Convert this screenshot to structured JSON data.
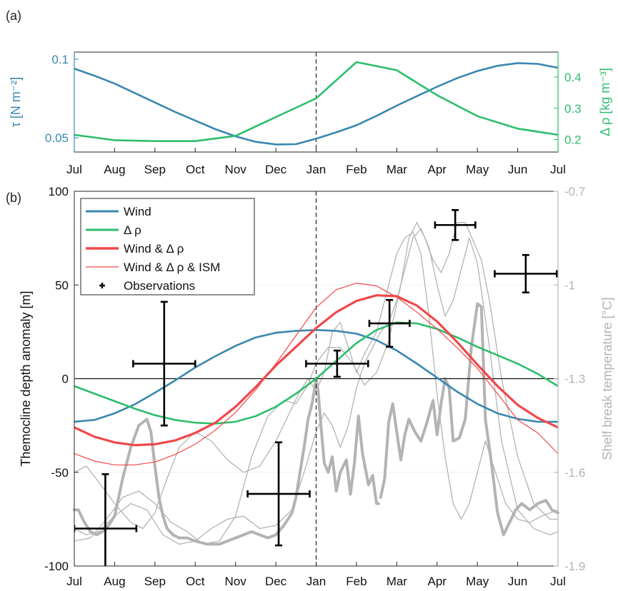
{
  "colors": {
    "wind": "#3A87B0",
    "drho": "#2DBE6C",
    "combined": "#F0474A",
    "ism": "#F0474A",
    "obs": "#000000",
    "gray": "#B3B3B3",
    "tau_axis": "#3A87B0",
    "drho_axis": "#2DBE6C"
  },
  "chart_data": [
    {
      "type": "line",
      "panel_label": "(a)",
      "x_ticks": [
        "Jul",
        "Aug",
        "Sep",
        "Oct",
        "Nov",
        "Dec",
        "Jan",
        "Feb",
        "Mar",
        "Apr",
        "May",
        "Jun",
        "Jul"
      ],
      "xlim": [
        0,
        12
      ],
      "ylabel_left": "τ [N m⁻²]",
      "ylabel_right": "Δ ρ [kg m⁻³]",
      "ylim_left": [
        0.041,
        0.1045
      ],
      "ylim_right": [
        0.16,
        0.48
      ],
      "yticks_left": [
        "0.05",
        "0.1"
      ],
      "yticks_right": [
        "0.2",
        "0.3",
        "0.4"
      ],
      "vline_x": 6,
      "series": [
        {
          "key": "tau",
          "axis": "left",
          "x": [
            0,
            0.5,
            1,
            1.5,
            2,
            2.5,
            3,
            3.5,
            4,
            4.5,
            5,
            5.5,
            6,
            6.5,
            7,
            7.5,
            8,
            8.5,
            9,
            9.5,
            10,
            10.5,
            11,
            11.5,
            12
          ],
          "values": [
            0.094,
            0.0895,
            0.0845,
            0.0785,
            0.0725,
            0.0665,
            0.061,
            0.0555,
            0.051,
            0.0475,
            0.0458,
            0.046,
            0.0495,
            0.0535,
            0.058,
            0.064,
            0.0705,
            0.0765,
            0.0825,
            0.088,
            0.0925,
            0.0958,
            0.0975,
            0.097,
            0.0945
          ]
        },
        {
          "key": "drho",
          "axis": "right",
          "x": [
            0,
            1,
            2,
            3,
            4,
            5,
            6,
            7,
            8,
            9,
            10,
            11,
            12
          ],
          "values": [
            0.215,
            0.198,
            0.195,
            0.195,
            0.212,
            0.272,
            0.332,
            0.448,
            0.422,
            0.342,
            0.275,
            0.235,
            0.215
          ]
        }
      ]
    },
    {
      "type": "line",
      "panel_label": "(b)",
      "x_ticks": [
        "Jul",
        "Aug",
        "Sep",
        "Oct",
        "Nov",
        "Dec",
        "Jan",
        "Feb",
        "Mar",
        "Apr",
        "May",
        "Jun",
        "Jul"
      ],
      "xlim": [
        0,
        12
      ],
      "ylabel_left": "Themocline depth anomaly [m]",
      "ylabel_right": "Shelf break temperature [°C]",
      "ylim_left": [
        -100,
        100
      ],
      "ylim_right": [
        -1.9,
        -0.7
      ],
      "yticks_left": [
        "-100",
        "-50",
        "0",
        "50",
        "100"
      ],
      "yticks_right": [
        "-1.9",
        "-1.6",
        "-1.3",
        "-1",
        "-0.7"
      ],
      "vline_x": 6,
      "hline_y": 0,
      "legend_position": "top-left",
      "legend": [
        "Wind",
        "Δ ρ",
        "Wind & Δ ρ",
        "Wind & Δ ρ & ISM",
        "Observations"
      ],
      "series": [
        {
          "key": "wind",
          "name": "Wind",
          "x": [
            0,
            0.5,
            1,
            1.5,
            2,
            2.5,
            3,
            3.5,
            4,
            4.5,
            5,
            5.5,
            6,
            6.5,
            7,
            7.5,
            8,
            8.5,
            9,
            9.5,
            10,
            10.5,
            11,
            11.5,
            12
          ],
          "values": [
            -23,
            -22,
            -18.5,
            -13.7,
            -7.5,
            -1,
            6,
            12,
            17.5,
            22,
            24.5,
            25.5,
            26,
            25.5,
            24,
            20.5,
            15,
            8,
            0.5,
            -7,
            -13.5,
            -18.5,
            -21.5,
            -23,
            -23
          ]
        },
        {
          "key": "drho",
          "name": "Δ ρ",
          "x": [
            0,
            0.5,
            1,
            1.5,
            2,
            2.5,
            3,
            3.5,
            4,
            4.5,
            5,
            5.5,
            6,
            6.5,
            7,
            7.5,
            8,
            8.5,
            9,
            9.5,
            10,
            10.5,
            11,
            11.5,
            12
          ],
          "values": [
            -4,
            -8,
            -12,
            -16,
            -19.5,
            -22,
            -23.5,
            -24,
            -23,
            -20,
            -15,
            -8,
            0,
            9.5,
            19,
            26,
            30,
            29.5,
            26.5,
            22,
            17,
            12.5,
            8,
            2.5,
            -4
          ]
        },
        {
          "key": "combined",
          "name": "Wind & Δ ρ",
          "x": [
            0,
            0.5,
            1,
            1.5,
            2,
            2.5,
            3,
            3.5,
            4,
            4.5,
            5,
            5.5,
            6,
            6.5,
            7,
            7.5,
            8,
            8.5,
            9,
            9.5,
            10,
            10.5,
            11,
            11.5,
            12
          ],
          "values": [
            -26,
            -31,
            -34,
            -35.5,
            -35,
            -33,
            -29,
            -23.5,
            -15,
            -4.5,
            7,
            17,
            27,
            35.5,
            41.5,
            44.5,
            44,
            39,
            30.5,
            19.5,
            7.5,
            -4,
            -14,
            -21,
            -26
          ]
        },
        {
          "key": "ism",
          "name": "Wind & Δ ρ & ISM",
          "x": [
            0,
            0.5,
            1,
            1.5,
            2,
            2.5,
            3,
            3.5,
            4,
            4.5,
            5,
            5.5,
            6,
            6.5,
            7,
            7.5,
            8,
            8.5,
            9,
            9.5,
            10,
            10.5,
            11,
            11.5,
            12
          ],
          "values": [
            -40,
            -44,
            -46,
            -46,
            -44.5,
            -40.5,
            -35,
            -27.5,
            -18,
            -6,
            8,
            23,
            38,
            47.5,
            51,
            49.5,
            43.5,
            35.5,
            26.5,
            16.5,
            5.5,
            -8,
            -22,
            -29,
            -40
          ]
        },
        {
          "key": "temp_thick",
          "axis": "right",
          "x": [
            0,
            0.1,
            0.25,
            0.4,
            0.55,
            0.7,
            0.85,
            1,
            1.1,
            1.2,
            1.4,
            1.6,
            1.8,
            1.9,
            2,
            2.1,
            2.2,
            2.3,
            2.45,
            2.6,
            2.8,
            3,
            3.3,
            3.6,
            3.8,
            4,
            4.2,
            4.4,
            4.6,
            4.8,
            5,
            5.2,
            5.4,
            5.5,
            5.6,
            5.7,
            5.8,
            5.9,
            6,
            6.05,
            6.1,
            6.2,
            6.3,
            6.4,
            6.5,
            6.6,
            6.75,
            6.85,
            6.95,
            7.05,
            7.15,
            7.3,
            7.4,
            7.5,
            7.55
          ],
          "values": [
            -1.72,
            -1.72,
            -1.76,
            -1.79,
            -1.8,
            -1.79,
            -1.77,
            -1.74,
            -1.68,
            -1.62,
            -1.52,
            -1.45,
            -1.43,
            -1.47,
            -1.58,
            -1.68,
            -1.74,
            -1.78,
            -1.8,
            -1.81,
            -1.81,
            -1.82,
            -1.83,
            -1.83,
            -1.82,
            -1.81,
            -1.8,
            -1.79,
            -1.8,
            -1.81,
            -1.8,
            -1.77,
            -1.73,
            -1.68,
            -1.6,
            -1.52,
            -1.43,
            -1.38,
            -1.3,
            -1.34,
            -1.42,
            -1.57,
            -1.6,
            -1.55,
            -1.66,
            -1.6,
            -1.56,
            -1.67,
            -1.57,
            -1.42,
            -1.54,
            -1.64,
            -1.61,
            -1.7,
            -1.7
          ]
        },
        {
          "key": "temp_thick2",
          "axis": "right",
          "x": [
            7.6,
            7.7,
            7.8,
            7.9,
            8,
            8.1,
            8.2,
            8.3,
            8.45,
            8.6,
            8.75,
            8.9,
            9,
            9.1,
            9.2,
            9.3,
            9.4,
            9.55,
            9.7,
            9.85,
            10,
            10.1,
            10.2,
            10.35,
            10.5,
            10.65,
            10.8,
            10.95,
            11.1,
            11.3,
            11.5,
            11.7,
            11.85,
            12
          ],
          "values": [
            -1.68,
            -1.62,
            -1.44,
            -1.38,
            -1.47,
            -1.56,
            -1.48,
            -1.43,
            -1.47,
            -1.5,
            -1.44,
            -1.37,
            -1.48,
            -1.38,
            -1.3,
            -1.33,
            -1.5,
            -1.49,
            -1.43,
            -1.2,
            -1.06,
            -1.07,
            -1.43,
            -1.57,
            -1.73,
            -1.8,
            -1.76,
            -1.72,
            -1.7,
            -1.72,
            -1.7,
            -1.69,
            -1.72,
            -1.73
          ]
        },
        {
          "key": "temp_thin1",
          "axis": "right",
          "x": [
            0,
            0.3,
            0.6,
            1,
            1.4,
            1.7,
            2,
            2.3,
            2.6,
            3,
            3.4,
            3.8,
            4.2,
            4.6,
            5,
            5.3,
            5.6,
            5.8,
            6,
            6.2,
            6.4,
            6.6,
            6.8,
            7,
            7.2,
            7.5,
            7.8,
            8,
            8.2,
            8.4,
            8.6,
            8.8,
            9,
            9.2,
            9.4,
            9.6,
            9.8,
            10,
            10.2,
            10.4,
            10.7,
            11,
            11.3,
            11.6,
            12
          ],
          "values": [
            -1.6,
            -1.58,
            -1.63,
            -1.7,
            -1.76,
            -1.78,
            -1.73,
            -1.62,
            -1.52,
            -1.47,
            -1.5,
            -1.56,
            -1.6,
            -1.58,
            -1.5,
            -1.42,
            -1.34,
            -1.3,
            -1.34,
            -1.28,
            -1.15,
            -1.12,
            -1.2,
            -1.28,
            -1.22,
            -1.15,
            -1.0,
            -0.9,
            -0.85,
            -0.83,
            -0.9,
            -1.1,
            -1.35,
            -1.55,
            -1.7,
            -1.75,
            -1.7,
            -1.6,
            -1.5,
            -1.58,
            -1.7,
            -1.75,
            -1.76,
            -1.74,
            -1.72
          ]
        },
        {
          "key": "temp_thin2",
          "axis": "right",
          "x": [
            0,
            0.3,
            0.6,
            1,
            1.4,
            1.8,
            2.2,
            2.6,
            3,
            3.4,
            3.8,
            4.2,
            4.6,
            5,
            5.4,
            5.7,
            6,
            6.2,
            6.4,
            6.6,
            6.8,
            7,
            7.2,
            7.4,
            7.6,
            7.8,
            8,
            8.2,
            8.4,
            8.6,
            8.8,
            9,
            9.2,
            9.4,
            9.6,
            9.8,
            10,
            10.3,
            10.6,
            11,
            11.4,
            11.8,
            12
          ],
          "values": [
            -1.78,
            -1.8,
            -1.79,
            -1.74,
            -1.7,
            -1.72,
            -1.8,
            -1.83,
            -1.82,
            -1.78,
            -1.75,
            -1.74,
            -1.78,
            -1.77,
            -1.72,
            -1.6,
            -1.47,
            -1.41,
            -1.45,
            -1.52,
            -1.45,
            -1.33,
            -1.25,
            -1.2,
            -1.15,
            -1.12,
            -1.05,
            -0.95,
            -0.85,
            -0.82,
            -0.88,
            -1.0,
            -1.1,
            -1.05,
            -0.95,
            -0.85,
            -0.93,
            -1.2,
            -1.5,
            -1.72,
            -1.78,
            -1.8,
            -1.79
          ]
        },
        {
          "key": "temp_thin3",
          "axis": "right",
          "x": [
            0,
            0.4,
            0.8,
            1.2,
            1.6,
            2,
            2.4,
            2.8,
            3.2,
            3.6,
            4,
            4.4,
            4.8,
            5.2,
            5.5,
            5.8,
            6,
            6.3,
            6.6,
            6.9,
            7.2,
            7.5,
            7.8,
            8.1,
            8.3,
            8.5,
            8.7,
            8.9,
            9.1,
            9.3,
            9.5,
            9.7,
            9.9,
            10.1,
            10.3,
            10.6,
            11,
            11.4,
            11.8,
            12
          ],
          "values": [
            -1.82,
            -1.81,
            -1.75,
            -1.68,
            -1.66,
            -1.7,
            -1.76,
            -1.79,
            -1.83,
            -1.82,
            -1.74,
            -1.55,
            -1.42,
            -1.37,
            -1.38,
            -1.32,
            -1.25,
            -1.2,
            -1.2,
            -1.25,
            -1.32,
            -1.28,
            -1.18,
            -1.0,
            -0.85,
            -0.8,
            -0.85,
            -0.92,
            -0.96,
            -0.9,
            -0.8,
            -0.8,
            -0.86,
            -0.92,
            -1.05,
            -1.3,
            -1.55,
            -1.7,
            -1.75,
            -1.75
          ]
        }
      ],
      "observations": {
        "x": [
          0.77,
          2.23,
          5.07,
          6.52,
          7.82,
          9.45,
          11.2
        ],
        "y": [
          -80,
          8,
          -61.5,
          8,
          29.5,
          82,
          56
        ],
        "x_error": [
          0.77,
          0.77,
          0.77,
          0.77,
          0.5,
          0.5,
          0.77
        ],
        "y_error": [
          29,
          33,
          27.5,
          7,
          12.5,
          8,
          10
        ]
      }
    }
  ]
}
